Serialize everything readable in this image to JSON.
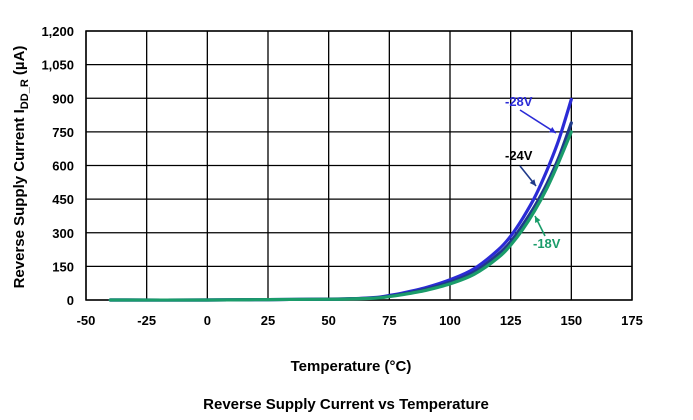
{
  "chart_data": {
    "type": "line",
    "xlabel": "Temperature (°C)",
    "ylabel": "Reverse Supply Current  I",
    "ylabel_subscript": "DD_R",
    "ylabel_unit": " (µA)",
    "caption": "Reverse Supply Current vs Temperature",
    "xlim": [
      -50,
      175
    ],
    "ylim": [
      0,
      1200
    ],
    "x_ticks": [
      "-50",
      "-25",
      "0",
      "25",
      "50",
      "75",
      "100",
      "125",
      "150",
      "175"
    ],
    "y_ticks": [
      "0",
      "150",
      "300",
      "450",
      "600",
      "750",
      "900",
      "1,050",
      "1,200"
    ],
    "grid": true,
    "series": [
      {
        "name": "-28V",
        "color": "#2b2bd6",
        "x": [
          -40,
          0,
          25,
          50,
          60,
          70,
          75,
          80,
          90,
          100,
          110,
          120,
          125,
          130,
          135,
          140,
          145,
          150
        ],
        "y": [
          0,
          0,
          2,
          4,
          6,
          12,
          20,
          30,
          55,
          90,
          140,
          225,
          285,
          365,
          460,
          580,
          720,
          895
        ]
      },
      {
        "name": "-24V",
        "color": "#1f3a8a",
        "x": [
          -40,
          0,
          25,
          50,
          60,
          70,
          75,
          80,
          90,
          100,
          110,
          120,
          125,
          130,
          135,
          140,
          145,
          150
        ],
        "y": [
          0,
          0,
          2,
          4,
          6,
          10,
          17,
          26,
          48,
          80,
          125,
          205,
          260,
          335,
          420,
          520,
          640,
          790
        ]
      },
      {
        "name": "-18V",
        "color": "#1a9c6a",
        "x": [
          -40,
          0,
          25,
          50,
          60,
          70,
          75,
          80,
          90,
          100,
          110,
          120,
          125,
          130,
          135,
          140,
          145,
          150
        ],
        "y": [
          0,
          0,
          2,
          3,
          5,
          9,
          15,
          23,
          43,
          72,
          115,
          190,
          245,
          315,
          400,
          500,
          620,
          750
        ]
      }
    ],
    "annotations": [
      {
        "text": "-28V",
        "series": "-28V",
        "color": "#2b2bd6"
      },
      {
        "text": "-24V",
        "series": "-24V",
        "color": "#000000"
      },
      {
        "text": "-18V",
        "series": "-18V",
        "color": "#1a9c6a"
      }
    ]
  }
}
